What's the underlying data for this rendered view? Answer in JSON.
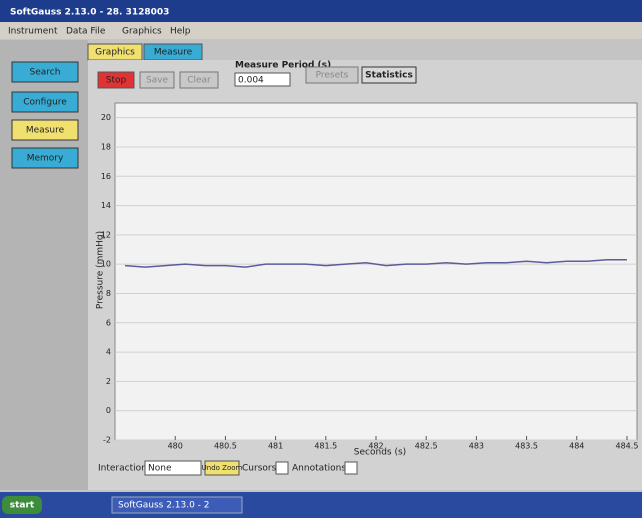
{
  "window": {
    "title": "SoftGauss 2.13.0 - 28. 3128003"
  },
  "menu": [
    "Instrument",
    "Data File",
    "Graphics",
    "Help"
  ],
  "sidebar": [
    "Search",
    "Configure",
    "Measure",
    "Memory"
  ],
  "tabs": [
    "Graphics",
    "Measure"
  ],
  "toolbar": {
    "stop": "Stop",
    "save": "Save",
    "clear": "Clear",
    "period_label": "Measure Period (s)",
    "period_value": "0.004",
    "presets": "Presets",
    "statistics": "Statistics"
  },
  "chart_data": {
    "type": "line",
    "x_label": "Seconds (s)",
    "y_label": "Pressure (mmHg)",
    "x": [
      479.5,
      479.7,
      479.9,
      480.1,
      480.3,
      480.5,
      480.7,
      480.9,
      481.1,
      481.3,
      481.5,
      481.7,
      481.9,
      482.1,
      482.3,
      482.5,
      482.7,
      482.9,
      483.1,
      483.3,
      483.5,
      483.7,
      483.9,
      484.1,
      484.3,
      484.5
    ],
    "series": [
      {
        "color": "#5c5c9c",
        "values": [
          9.9,
          9.8,
          9.9,
          10.0,
          9.9,
          9.9,
          9.8,
          10.0,
          10.0,
          10.0,
          9.9,
          10.0,
          10.1,
          9.9,
          10.0,
          10.0,
          10.1,
          10.0,
          10.1,
          10.1,
          10.2,
          10.1,
          10.2,
          10.2,
          10.3,
          10.3
        ]
      }
    ],
    "xlim": [
      479.4,
      484.6
    ],
    "ylim": [
      -2,
      21
    ],
    "xticks": [
      480,
      480.5,
      481,
      481.5,
      482,
      482.5,
      483,
      483.5,
      484,
      484.5
    ],
    "yticks": [
      -2,
      0,
      2,
      4,
      6,
      8,
      10,
      12,
      14,
      16,
      18,
      20
    ],
    "grid": true
  },
  "bottom": {
    "interaction": "Interaction:",
    "mode": "None",
    "undo_zoom": "Undo Zoom",
    "cursors": "Cursors",
    "annotations": "Annotations"
  },
  "taskbar": {
    "start": "start",
    "task": "SoftGauss 2.13.0 - 2"
  }
}
